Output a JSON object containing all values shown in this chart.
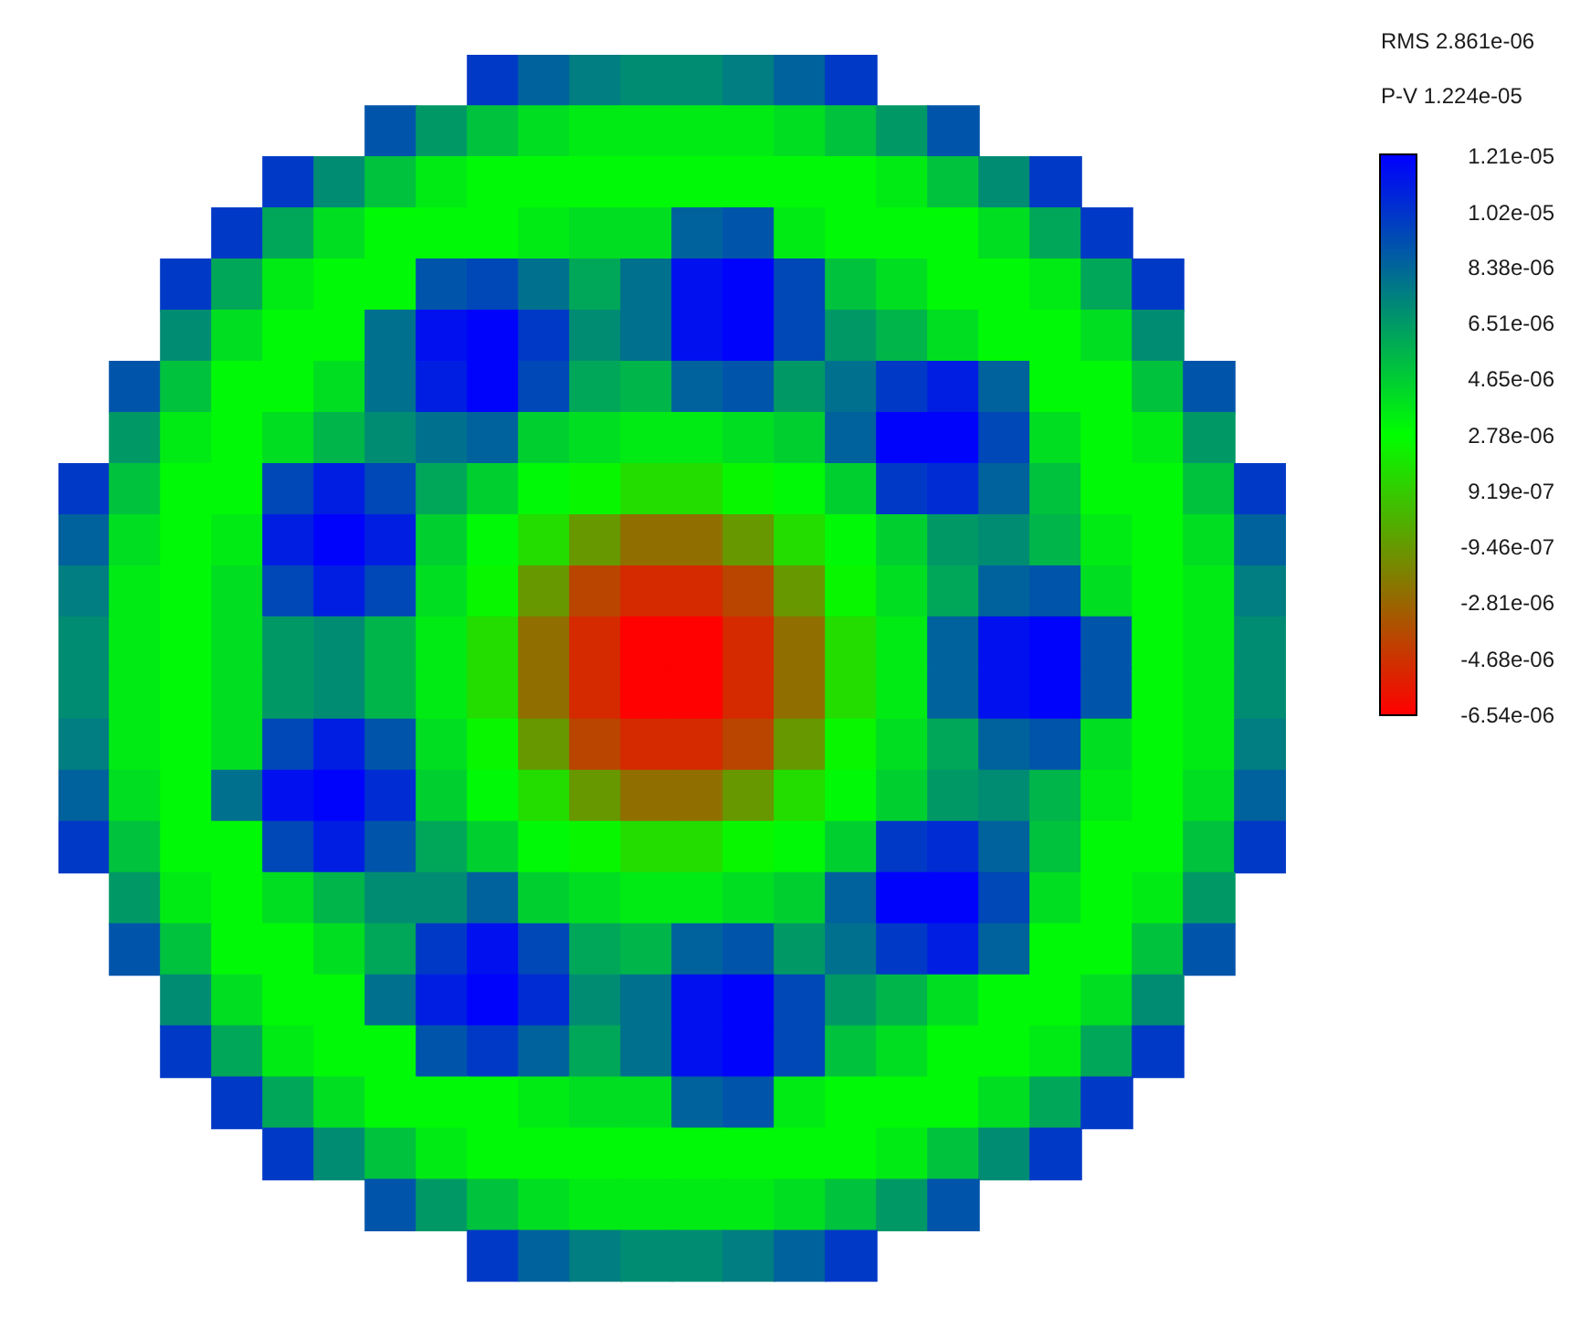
{
  "chart_data": {
    "type": "heatmap",
    "categories": [
      null,
      null,
      null,
      null,
      null,
      null,
      null,
      null,
      null,
      null,
      null,
      null,
      null,
      null,
      null,
      null,
      null,
      null,
      null,
      null,
      null,
      null,
      null,
      null
    ],
    "y_categories": [
      null,
      null,
      null,
      null,
      null,
      null,
      null,
      null,
      null,
      null,
      null,
      null,
      null,
      null,
      null,
      null,
      null,
      null,
      null,
      null,
      null,
      null,
      null,
      null
    ],
    "cells": [
      [
        null,
        null,
        null,
        null,
        null,
        null,
        null,
        null,
        1e-05,
        8.5e-06,
        7.5e-06,
        7e-06,
        7e-06,
        7.5e-06,
        8.5e-06,
        1e-05,
        null,
        null,
        null,
        null,
        null,
        null,
        null,
        null
      ],
      [
        null,
        null,
        null,
        null,
        null,
        null,
        9e-06,
        6.5e-06,
        5e-06,
        4e-06,
        3.5e-06,
        3.5e-06,
        3.5e-06,
        3.5e-06,
        4e-06,
        5e-06,
        6.5e-06,
        9e-06,
        null,
        null,
        null,
        null,
        null,
        null
      ],
      [
        null,
        null,
        null,
        null,
        1e-05,
        7e-06,
        5e-06,
        3.5e-06,
        3e-06,
        3e-06,
        3e-06,
        3e-06,
        3e-06,
        3e-06,
        3e-06,
        3e-06,
        3.5e-06,
        5e-06,
        7e-06,
        1e-05,
        null,
        null,
        null,
        null
      ],
      [
        null,
        null,
        null,
        1e-05,
        6e-06,
        4e-06,
        3e-06,
        3e-06,
        3e-06,
        3.5e-06,
        4e-06,
        4e-06,
        8.5e-06,
        9e-06,
        3.5e-06,
        3e-06,
        3e-06,
        3e-06,
        4e-06,
        6e-06,
        1e-05,
        null,
        null,
        null
      ],
      [
        null,
        null,
        1e-05,
        6e-06,
        3.5e-06,
        3e-06,
        3e-06,
        9e-06,
        9.5e-06,
        8e-06,
        6e-06,
        8e-06,
        1.15e-05,
        1.2e-05,
        9.5e-06,
        5e-06,
        4e-06,
        3e-06,
        3e-06,
        3.5e-06,
        6e-06,
        1e-05,
        null,
        null
      ],
      [
        null,
        null,
        7e-06,
        4e-06,
        3e-06,
        3e-06,
        8e-06,
        1.15e-05,
        1.2e-05,
        1e-05,
        7e-06,
        8e-06,
        1.15e-05,
        1.2e-05,
        9.5e-06,
        6.5e-06,
        5.5e-06,
        4e-06,
        3e-06,
        3e-06,
        4e-06,
        7e-06,
        null,
        null
      ],
      [
        null,
        9e-06,
        5e-06,
        3e-06,
        3e-06,
        4e-06,
        8e-06,
        1.1e-05,
        1.2e-05,
        9.5e-06,
        6e-06,
        5.5e-06,
        8.5e-06,
        9e-06,
        6.5e-06,
        8e-06,
        1e-05,
        1.1e-05,
        8.5e-06,
        3e-06,
        3e-06,
        5e-06,
        9e-06,
        null
      ],
      [
        null,
        6.5e-06,
        3.5e-06,
        3e-06,
        4e-06,
        5.5e-06,
        7e-06,
        8e-06,
        8.5e-06,
        4.5e-06,
        4e-06,
        3.5e-06,
        3.5e-06,
        4e-06,
        4.5e-06,
        8.5e-06,
        1.2e-05,
        1.2e-05,
        9.5e-06,
        4e-06,
        3e-06,
        3.5e-06,
        6.5e-06,
        null
      ],
      [
        1e-05,
        5e-06,
        3e-06,
        3e-06,
        9.5e-06,
        1.1e-05,
        9.5e-06,
        6e-06,
        4.5e-06,
        3e-06,
        2.5e-06,
        1.5e-06,
        1.5e-06,
        2.5e-06,
        3e-06,
        4.5e-06,
        1e-05,
        1.05e-05,
        8.5e-06,
        5e-06,
        3e-06,
        3e-06,
        5e-06,
        1e-05
      ],
      [
        8.5e-06,
        4e-06,
        3e-06,
        3.5e-06,
        1.1e-05,
        1.2e-05,
        1.1e-05,
        4.5e-06,
        3e-06,
        1.5e-06,
        -1e-06,
        -2.5e-06,
        -2.5e-06,
        -1e-06,
        1.5e-06,
        3e-06,
        4.5e-06,
        6.5e-06,
        7e-06,
        5.5e-06,
        3.5e-06,
        3e-06,
        4e-06,
        8.5e-06
      ],
      [
        7.5e-06,
        3.5e-06,
        3e-06,
        4e-06,
        9.5e-06,
        1.1e-05,
        9.5e-06,
        4e-06,
        2.5e-06,
        -1e-06,
        -4e-06,
        -5e-06,
        -5e-06,
        -4e-06,
        -1e-06,
        2.5e-06,
        4e-06,
        6e-06,
        8.5e-06,
        9e-06,
        4e-06,
        3e-06,
        3.5e-06,
        7.5e-06
      ],
      [
        7e-06,
        3.5e-06,
        3e-06,
        4e-06,
        6.5e-06,
        7e-06,
        5.5e-06,
        3.5e-06,
        1.5e-06,
        -2.5e-06,
        -5e-06,
        -6.5e-06,
        -6.5e-06,
        -5e-06,
        -2.5e-06,
        1.5e-06,
        3.5e-06,
        8.5e-06,
        1.15e-05,
        1.2e-05,
        9e-06,
        3e-06,
        3.5e-06,
        7e-06
      ],
      [
        7e-06,
        3.5e-06,
        3e-06,
        4e-06,
        6.5e-06,
        7e-06,
        5.5e-06,
        3.5e-06,
        1.5e-06,
        -2.5e-06,
        -5e-06,
        -6.5e-06,
        -6.5e-06,
        -5e-06,
        -2.5e-06,
        1.5e-06,
        3.5e-06,
        8.5e-06,
        1.15e-05,
        1.2e-05,
        9e-06,
        3e-06,
        3.5e-06,
        7e-06
      ],
      [
        7.5e-06,
        3.5e-06,
        3e-06,
        4e-06,
        9.5e-06,
        1.1e-05,
        9e-06,
        4e-06,
        2.5e-06,
        -1e-06,
        -4e-06,
        -5e-06,
        -5e-06,
        -4e-06,
        -1e-06,
        2.5e-06,
        4e-06,
        6e-06,
        8.5e-06,
        9e-06,
        4e-06,
        3e-06,
        3.5e-06,
        7.5e-06
      ],
      [
        8.5e-06,
        4e-06,
        3e-06,
        8e-06,
        1.15e-05,
        1.2e-05,
        1.05e-05,
        4.5e-06,
        3e-06,
        1.5e-06,
        -1e-06,
        -2.5e-06,
        -2.5e-06,
        -1e-06,
        1.5e-06,
        3e-06,
        4.5e-06,
        6.5e-06,
        7e-06,
        5.5e-06,
        3.5e-06,
        3e-06,
        4e-06,
        8.5e-06
      ],
      [
        1e-05,
        5e-06,
        3e-06,
        3e-06,
        9.5e-06,
        1.1e-05,
        9e-06,
        6e-06,
        4.5e-06,
        3e-06,
        2.5e-06,
        1.5e-06,
        1.5e-06,
        2.5e-06,
        3e-06,
        4.5e-06,
        1e-05,
        1.05e-05,
        8.5e-06,
        5e-06,
        3e-06,
        3e-06,
        5e-06,
        1e-05
      ],
      [
        null,
        6.5e-06,
        3.5e-06,
        3e-06,
        4e-06,
        5.5e-06,
        7e-06,
        7e-06,
        8.5e-06,
        4.5e-06,
        4e-06,
        3.5e-06,
        3.5e-06,
        4e-06,
        4.5e-06,
        8.5e-06,
        1.2e-05,
        1.2e-05,
        9.5e-06,
        4e-06,
        3e-06,
        3.5e-06,
        6.5e-06,
        null
      ],
      [
        null,
        9e-06,
        5e-06,
        3e-06,
        3e-06,
        4e-06,
        6e-06,
        1e-05,
        1.15e-05,
        9.5e-06,
        6e-06,
        5.5e-06,
        8.5e-06,
        9e-06,
        6.5e-06,
        8e-06,
        1e-05,
        1.1e-05,
        8.5e-06,
        3e-06,
        3e-06,
        5e-06,
        9e-06,
        null
      ],
      [
        null,
        null,
        7e-06,
        4e-06,
        3e-06,
        3e-06,
        8e-06,
        1.1e-05,
        1.2e-05,
        1.05e-05,
        7e-06,
        8e-06,
        1.15e-05,
        1.2e-05,
        9.5e-06,
        6.5e-06,
        5.5e-06,
        4e-06,
        3e-06,
        3e-06,
        4e-06,
        7e-06,
        null,
        null
      ],
      [
        null,
        null,
        1e-05,
        6e-06,
        3.5e-06,
        3e-06,
        3e-06,
        9e-06,
        1e-05,
        8.5e-06,
        6e-06,
        8e-06,
        1.15e-05,
        1.2e-05,
        9.5e-06,
        5e-06,
        4e-06,
        3e-06,
        3e-06,
        3.5e-06,
        6e-06,
        1e-05,
        null,
        null
      ],
      [
        null,
        null,
        null,
        1e-05,
        6e-06,
        4e-06,
        3e-06,
        3e-06,
        3e-06,
        3.5e-06,
        4e-06,
        4e-06,
        8.5e-06,
        9e-06,
        3.5e-06,
        3e-06,
        3e-06,
        3e-06,
        4e-06,
        6e-06,
        1e-05,
        null,
        null,
        null
      ],
      [
        null,
        null,
        null,
        null,
        1e-05,
        7e-06,
        5e-06,
        3.5e-06,
        3e-06,
        3e-06,
        3e-06,
        3e-06,
        3e-06,
        3e-06,
        3e-06,
        3e-06,
        3.5e-06,
        5e-06,
        7e-06,
        1e-05,
        null,
        null,
        null,
        null
      ],
      [
        null,
        null,
        null,
        null,
        null,
        null,
        9e-06,
        6.5e-06,
        5e-06,
        4e-06,
        3.5e-06,
        3.5e-06,
        3.5e-06,
        3.5e-06,
        4e-06,
        5e-06,
        6.5e-06,
        9e-06,
        null,
        null,
        null,
        null,
        null,
        null
      ],
      [
        null,
        null,
        null,
        null,
        null,
        null,
        null,
        null,
        1e-05,
        8.5e-06,
        7.5e-06,
        7e-06,
        7e-06,
        7.5e-06,
        8.5e-06,
        1e-05,
        null,
        null,
        null,
        null,
        null,
        null,
        null,
        null
      ]
    ],
    "clim": [
      -6.54e-06,
      1.21e-05
    ],
    "cticks": [
      {
        "value": 1.21e-05,
        "label": "1.21e-05"
      },
      {
        "value": 1.02e-05,
        "label": "1.02e-05"
      },
      {
        "value": 8.38e-06,
        "label": "8.38e-06"
      },
      {
        "value": 6.51e-06,
        "label": "6.51e-06"
      },
      {
        "value": 4.65e-06,
        "label": "4.65e-06"
      },
      {
        "value": 2.78e-06,
        "label": "2.78e-06"
      },
      {
        "value": 9.19e-07,
        "label": "9.19e-07"
      },
      {
        "value": -9.46e-07,
        "label": "-9.46e-07"
      },
      {
        "value": -2.81e-06,
        "label": "-2.81e-06"
      },
      {
        "value": -4.68e-06,
        "label": "-4.68e-06"
      },
      {
        "value": -6.54e-06,
        "label": "-6.54e-06"
      }
    ],
    "annotations": [
      "RMS 2.861e-06",
      "P-V 1.224e-05"
    ],
    "tick_labels": false
  }
}
